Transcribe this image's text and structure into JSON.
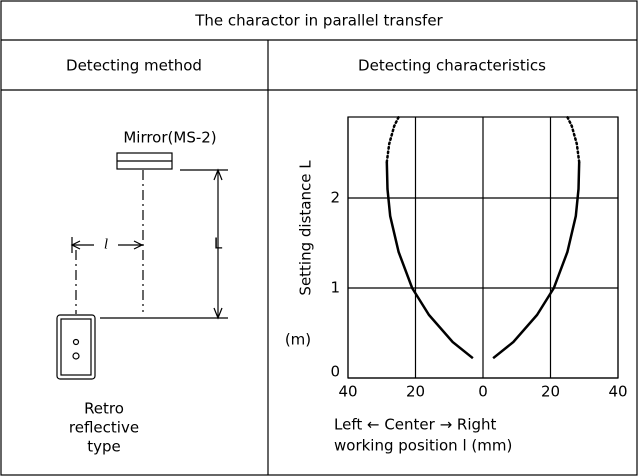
{
  "header": {
    "title": "The charactor in parallel transfer"
  },
  "columns": [
    "Detecting method",
    "Detecting characteristics"
  ],
  "diagram": {
    "mirror_label": "Mirror(MS-2)",
    "offset_label": "l",
    "distance_label": "L",
    "sensor_label": [
      "Retro",
      "reflective",
      "type"
    ]
  },
  "chart": {
    "type": "line",
    "y_label": "Setting distance L",
    "y_unit": "(m)",
    "x_label": [
      "Left ← Center → Right",
      "working position l (mm)"
    ],
    "xlim": [
      -40,
      40
    ],
    "ylim": [
      0,
      2.9
    ],
    "xticks": [
      {
        "value": -40,
        "label": "40"
      },
      {
        "value": -20,
        "label": "20"
      },
      0,
      20,
      40
    ],
    "yticks": [
      0,
      1,
      2
    ],
    "grid": true,
    "color": "#000000",
    "series": [
      {
        "style": "solid",
        "x": [
          -3,
          -9,
          -16,
          -21,
          -25,
          -27.5,
          -28.3,
          -28.5
        ],
        "values": [
          0.22,
          0.4,
          0.7,
          1.0,
          1.4,
          1.8,
          2.1,
          2.4
        ]
      },
      {
        "style": "dotted",
        "x": [
          -28.5,
          -27.8,
          -26.3,
          -25
        ],
        "values": [
          2.4,
          2.6,
          2.8,
          2.9
        ]
      },
      {
        "style": "solid",
        "x": [
          3,
          9,
          16,
          21,
          25,
          27.5,
          28.3,
          28.5
        ],
        "values": [
          0.22,
          0.4,
          0.7,
          1.0,
          1.4,
          1.8,
          2.1,
          2.4
        ]
      },
      {
        "style": "dotted",
        "x": [
          28.5,
          27.8,
          26.3,
          25
        ],
        "values": [
          2.4,
          2.6,
          2.8,
          2.9
        ]
      }
    ]
  }
}
